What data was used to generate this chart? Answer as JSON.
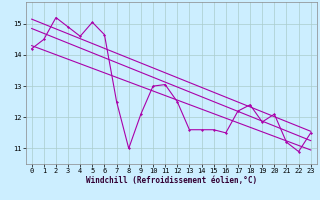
{
  "xlabel": "Windchill (Refroidissement éolien,°C)",
  "background_color": "#cceeff",
  "grid_color": "#aacccc",
  "line_color": "#aa00aa",
  "xlim": [
    -0.5,
    23.5
  ],
  "ylim": [
    10.5,
    15.7
  ],
  "yticks": [
    11,
    12,
    13,
    14,
    15
  ],
  "xticks": [
    0,
    1,
    2,
    3,
    4,
    5,
    6,
    7,
    8,
    9,
    10,
    11,
    12,
    13,
    14,
    15,
    16,
    17,
    18,
    19,
    20,
    21,
    22,
    23
  ],
  "main_data": [
    14.2,
    14.5,
    15.2,
    14.9,
    14.6,
    15.05,
    14.65,
    12.5,
    11.0,
    12.1,
    13.0,
    13.05,
    12.5,
    11.6,
    11.6,
    11.6,
    11.5,
    12.2,
    12.4,
    11.85,
    12.1,
    11.2,
    10.9,
    11.5
  ],
  "trend1_start_x": 0,
  "trend1_start_y": 15.15,
  "trend1_end_x": 23,
  "trend1_end_y": 11.55,
  "trend2_start_x": 0,
  "trend2_start_y": 14.85,
  "trend2_end_x": 23,
  "trend2_end_y": 11.25,
  "trend3_start_x": 0,
  "trend3_start_y": 14.3,
  "trend3_end_x": 23,
  "trend3_end_y": 10.95,
  "tick_fontsize": 5.0,
  "xlabel_fontsize": 5.5,
  "lw": 0.8,
  "marker_size": 3.0
}
